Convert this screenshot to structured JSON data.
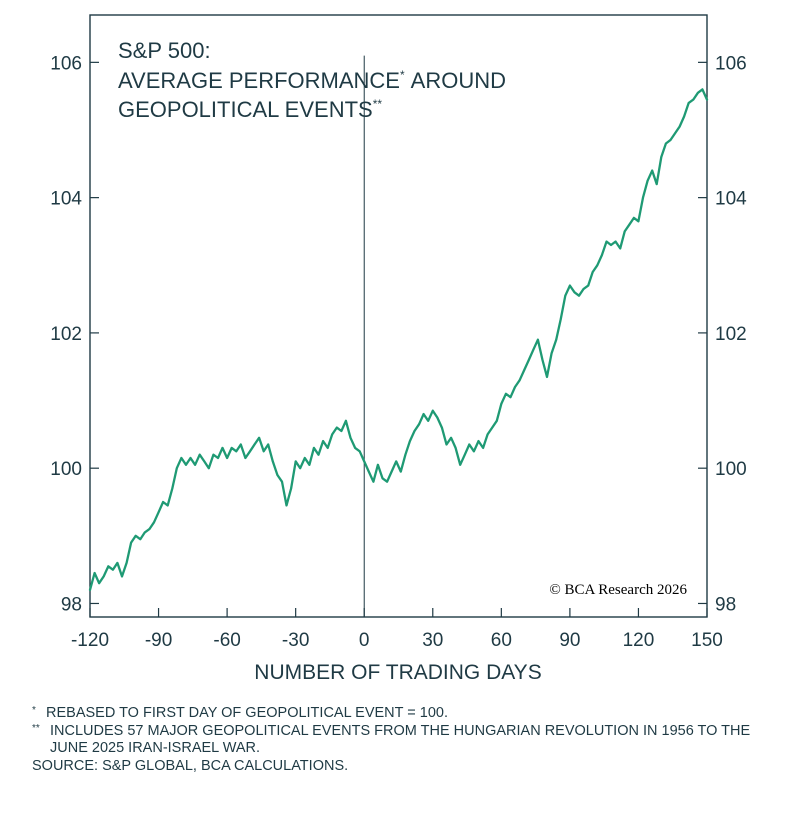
{
  "chart_data": {
    "type": "line",
    "title": [
      "S&P 500:",
      "AVERAGE PERFORMANCE",
      "AROUND",
      "GEOPOLITICAL EVENTS"
    ],
    "title_marks": [
      "*",
      "**"
    ],
    "xlabel": "NUMBER OF TRADING DAYS",
    "ylabel": "",
    "xlim": [
      -120,
      150
    ],
    "ylim": [
      97.8,
      106.7
    ],
    "x_ticks": [
      -120,
      -90,
      -60,
      -30,
      0,
      30,
      60,
      90,
      120,
      150
    ],
    "y_ticks": [
      98,
      100,
      102,
      104,
      106
    ],
    "y_axis_sides": [
      "left",
      "right"
    ],
    "vline_x": 0,
    "grid": false,
    "line_color": "#1f9a74",
    "axis_color": "#1f3a44",
    "series": [
      {
        "points": [
          [
            -120,
            98.2
          ],
          [
            -118,
            98.45
          ],
          [
            -116,
            98.3
          ],
          [
            -114,
            98.4
          ],
          [
            -112,
            98.55
          ],
          [
            -110,
            98.5
          ],
          [
            -108,
            98.6
          ],
          [
            -106,
            98.4
          ],
          [
            -104,
            98.6
          ],
          [
            -102,
            98.9
          ],
          [
            -100,
            99.0
          ],
          [
            -98,
            98.95
          ],
          [
            -96,
            99.05
          ],
          [
            -94,
            99.1
          ],
          [
            -92,
            99.2
          ],
          [
            -90,
            99.35
          ],
          [
            -88,
            99.5
          ],
          [
            -86,
            99.45
          ],
          [
            -84,
            99.7
          ],
          [
            -82,
            100.0
          ],
          [
            -80,
            100.15
          ],
          [
            -78,
            100.05
          ],
          [
            -76,
            100.15
          ],
          [
            -74,
            100.05
          ],
          [
            -72,
            100.2
          ],
          [
            -70,
            100.1
          ],
          [
            -68,
            100.0
          ],
          [
            -66,
            100.2
          ],
          [
            -64,
            100.15
          ],
          [
            -62,
            100.3
          ],
          [
            -60,
            100.15
          ],
          [
            -58,
            100.3
          ],
          [
            -56,
            100.25
          ],
          [
            -54,
            100.35
          ],
          [
            -52,
            100.15
          ],
          [
            -50,
            100.25
          ],
          [
            -48,
            100.35
          ],
          [
            -46,
            100.45
          ],
          [
            -44,
            100.25
          ],
          [
            -42,
            100.35
          ],
          [
            -40,
            100.1
          ],
          [
            -38,
            99.9
          ],
          [
            -36,
            99.8
          ],
          [
            -34,
            99.45
          ],
          [
            -32,
            99.7
          ],
          [
            -30,
            100.1
          ],
          [
            -28,
            100.0
          ],
          [
            -26,
            100.15
          ],
          [
            -24,
            100.05
          ],
          [
            -22,
            100.3
          ],
          [
            -20,
            100.2
          ],
          [
            -18,
            100.4
          ],
          [
            -16,
            100.3
          ],
          [
            -14,
            100.5
          ],
          [
            -12,
            100.6
          ],
          [
            -10,
            100.55
          ],
          [
            -8,
            100.7
          ],
          [
            -6,
            100.45
          ],
          [
            -4,
            100.3
          ],
          [
            -2,
            100.25
          ],
          [
            0,
            100.1
          ],
          [
            2,
            99.95
          ],
          [
            4,
            99.8
          ],
          [
            6,
            100.05
          ],
          [
            8,
            99.85
          ],
          [
            10,
            99.8
          ],
          [
            12,
            99.95
          ],
          [
            14,
            100.1
          ],
          [
            16,
            99.95
          ],
          [
            18,
            100.2
          ],
          [
            20,
            100.4
          ],
          [
            22,
            100.55
          ],
          [
            24,
            100.65
          ],
          [
            26,
            100.8
          ],
          [
            28,
            100.7
          ],
          [
            30,
            100.85
          ],
          [
            32,
            100.75
          ],
          [
            34,
            100.6
          ],
          [
            36,
            100.35
          ],
          [
            38,
            100.45
          ],
          [
            40,
            100.3
          ],
          [
            42,
            100.05
          ],
          [
            44,
            100.2
          ],
          [
            46,
            100.35
          ],
          [
            48,
            100.25
          ],
          [
            50,
            100.4
          ],
          [
            52,
            100.3
          ],
          [
            54,
            100.5
          ],
          [
            56,
            100.6
          ],
          [
            58,
            100.7
          ],
          [
            60,
            100.95
          ],
          [
            62,
            101.1
          ],
          [
            64,
            101.05
          ],
          [
            66,
            101.2
          ],
          [
            68,
            101.3
          ],
          [
            70,
            101.45
          ],
          [
            72,
            101.6
          ],
          [
            74,
            101.75
          ],
          [
            76,
            101.9
          ],
          [
            78,
            101.6
          ],
          [
            80,
            101.35
          ],
          [
            82,
            101.7
          ],
          [
            84,
            101.9
          ],
          [
            86,
            102.2
          ],
          [
            88,
            102.55
          ],
          [
            90,
            102.7
          ],
          [
            92,
            102.6
          ],
          [
            94,
            102.55
          ],
          [
            96,
            102.65
          ],
          [
            98,
            102.7
          ],
          [
            100,
            102.9
          ],
          [
            102,
            103.0
          ],
          [
            104,
            103.15
          ],
          [
            106,
            103.35
          ],
          [
            108,
            103.3
          ],
          [
            110,
            103.35
          ],
          [
            112,
            103.25
          ],
          [
            114,
            103.5
          ],
          [
            116,
            103.6
          ],
          [
            118,
            103.7
          ],
          [
            120,
            103.65
          ],
          [
            122,
            104.0
          ],
          [
            124,
            104.25
          ],
          [
            126,
            104.4
          ],
          [
            128,
            104.2
          ],
          [
            130,
            104.6
          ],
          [
            132,
            104.8
          ],
          [
            134,
            104.85
          ],
          [
            136,
            104.95
          ],
          [
            138,
            105.05
          ],
          [
            140,
            105.2
          ],
          [
            142,
            105.4
          ],
          [
            144,
            105.45
          ],
          [
            146,
            105.55
          ],
          [
            148,
            105.6
          ],
          [
            150,
            105.45
          ]
        ]
      }
    ],
    "annotation": "© BCA Research 2026"
  },
  "footnotes": [
    {
      "mark": "*",
      "text": "REBASED TO FIRST DAY OF GEOPOLITICAL EVENT = 100."
    },
    {
      "mark": "**",
      "text": "INCLUDES 57 MAJOR GEOPOLITICAL EVENTS FROM THE HUNGARIAN REVOLUTION IN 1956 TO THE JUNE 2025 IRAN-ISRAEL WAR."
    }
  ],
  "source": "SOURCE: S&P GLOBAL, BCA CALCULATIONS."
}
